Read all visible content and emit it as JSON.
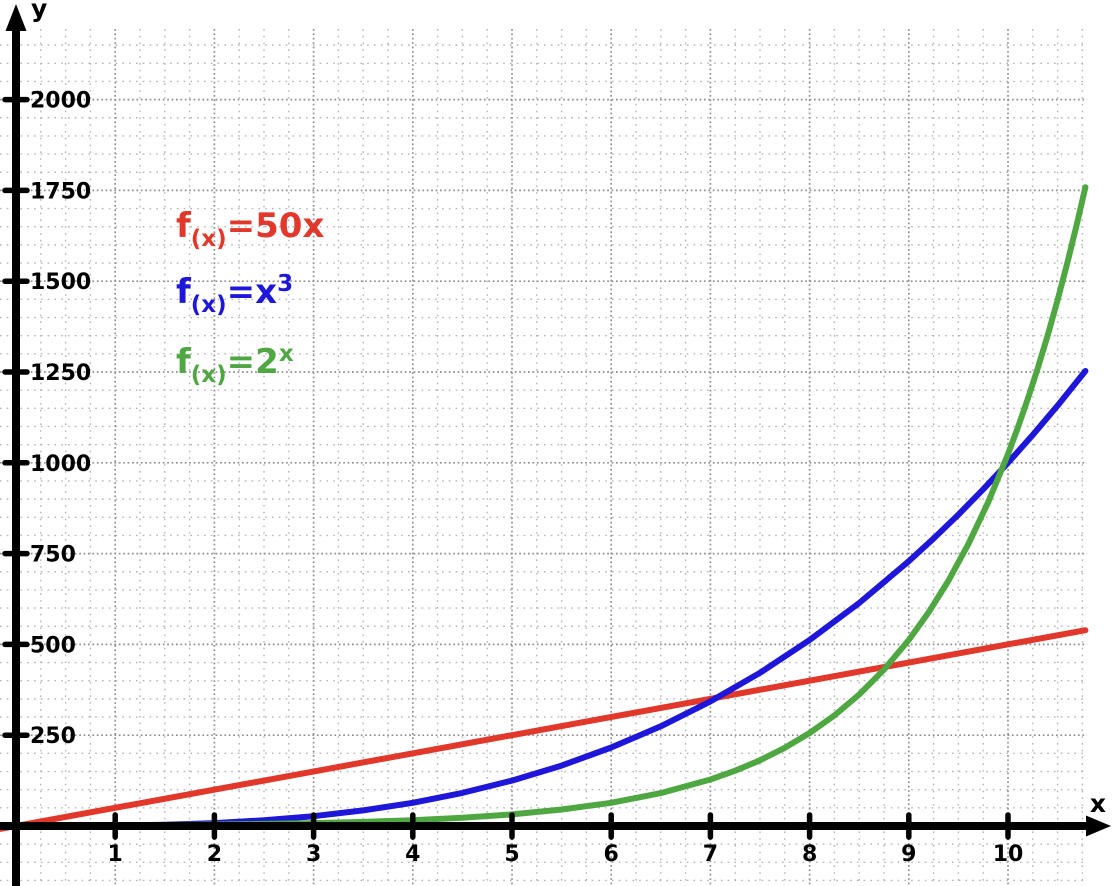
{
  "chart_data": {
    "type": "line",
    "title": "",
    "xlabel": "x",
    "ylabel": "y",
    "x_ticks": [
      1,
      2,
      3,
      4,
      5,
      6,
      7,
      8,
      9,
      10
    ],
    "y_ticks": [
      250,
      500,
      750,
      1000,
      1250,
      1500,
      1750,
      2000
    ],
    "xlim": [
      -0.16,
      11.07
    ],
    "ylim": [
      -165,
      2270
    ],
    "axis_color": "#000000",
    "grid": {
      "shown": true,
      "style": "dotted",
      "minor_x_step": 0.25,
      "minor_y_step": 50,
      "major_x_step": 1,
      "major_y_step": 250,
      "minor_color": "#b5b5b5",
      "major_color": "#8f8f8f"
    },
    "series": [
      {
        "id": "50x",
        "name": "f(x)=50x",
        "formula": "y = 50x",
        "color": "#e2382b",
        "points": [
          [
            -0.16,
            -8
          ],
          [
            10.78,
            539
          ]
        ]
      },
      {
        "id": "x-cubed",
        "name": "f(x)=x^3",
        "formula": "y = x^3",
        "color": "#1e16d9",
        "points": [
          [
            -0.15,
            0
          ],
          [
            0.5,
            0.1
          ],
          [
            1,
            1
          ],
          [
            1.5,
            3.4
          ],
          [
            2,
            8
          ],
          [
            2.5,
            15.6
          ],
          [
            3,
            27
          ],
          [
            3.5,
            42.9
          ],
          [
            4,
            64
          ],
          [
            4.5,
            91.1
          ],
          [
            5,
            125
          ],
          [
            5.5,
            166.4
          ],
          [
            6,
            216
          ],
          [
            6.5,
            274.6
          ],
          [
            7,
            343
          ],
          [
            7.5,
            421.9
          ],
          [
            8,
            512
          ],
          [
            8.5,
            614.1
          ],
          [
            9,
            729
          ],
          [
            9.25,
            791.5
          ],
          [
            9.5,
            857.4
          ],
          [
            9.75,
            926.9
          ],
          [
            10,
            1000
          ],
          [
            10.25,
            1076.9
          ],
          [
            10.5,
            1157.6
          ],
          [
            10.78,
            1252.7
          ]
        ]
      },
      {
        "id": "2-pow-x",
        "name": "f(x)=2^x",
        "formula": "y = 2^x",
        "color": "#4fa742",
        "points": [
          [
            -0.15,
            0.9
          ],
          [
            0.5,
            1.4
          ],
          [
            1,
            2
          ],
          [
            1.5,
            2.8
          ],
          [
            2,
            4
          ],
          [
            2.5,
            5.7
          ],
          [
            3,
            8
          ],
          [
            3.5,
            11.3
          ],
          [
            4,
            16
          ],
          [
            4.5,
            22.6
          ],
          [
            5,
            32
          ],
          [
            5.5,
            45.3
          ],
          [
            6,
            64
          ],
          [
            6.5,
            90.5
          ],
          [
            7,
            128
          ],
          [
            7.25,
            152.2
          ],
          [
            7.5,
            181
          ],
          [
            7.75,
            215.3
          ],
          [
            8,
            256
          ],
          [
            8.25,
            304.4
          ],
          [
            8.5,
            362
          ],
          [
            8.75,
            430.5
          ],
          [
            9,
            512
          ],
          [
            9.2,
            588.1
          ],
          [
            9.4,
            675.6
          ],
          [
            9.6,
            776
          ],
          [
            9.8,
            891.4
          ],
          [
            10,
            1024
          ],
          [
            10.1,
            1097.5
          ],
          [
            10.2,
            1176.3
          ],
          [
            10.3,
            1260.7
          ],
          [
            10.4,
            1351.2
          ],
          [
            10.5,
            1448.2
          ],
          [
            10.6,
            1552.1
          ],
          [
            10.7,
            1663.5
          ],
          [
            10.78,
            1758.9
          ]
        ]
      }
    ],
    "legend": {
      "position": "upper-left",
      "entries": [
        {
          "id": "50x",
          "color": "#e2382b",
          "parts": [
            {
              "t": "f"
            },
            {
              "t": "(x)",
              "script": "sub"
            },
            {
              "t": "=50x"
            }
          ]
        },
        {
          "id": "x-cubed",
          "color": "#1e16d9",
          "parts": [
            {
              "t": "f"
            },
            {
              "t": "(x)",
              "script": "sub"
            },
            {
              "t": "=x"
            },
            {
              "t": "3",
              "script": "sup"
            }
          ]
        },
        {
          "id": "2-pow-x",
          "color": "#4fa742",
          "parts": [
            {
              "t": "f"
            },
            {
              "t": "(x)",
              "script": "sub"
            },
            {
              "t": "=2"
            },
            {
              "t": "x",
              "script": "sup"
            }
          ]
        }
      ]
    }
  }
}
